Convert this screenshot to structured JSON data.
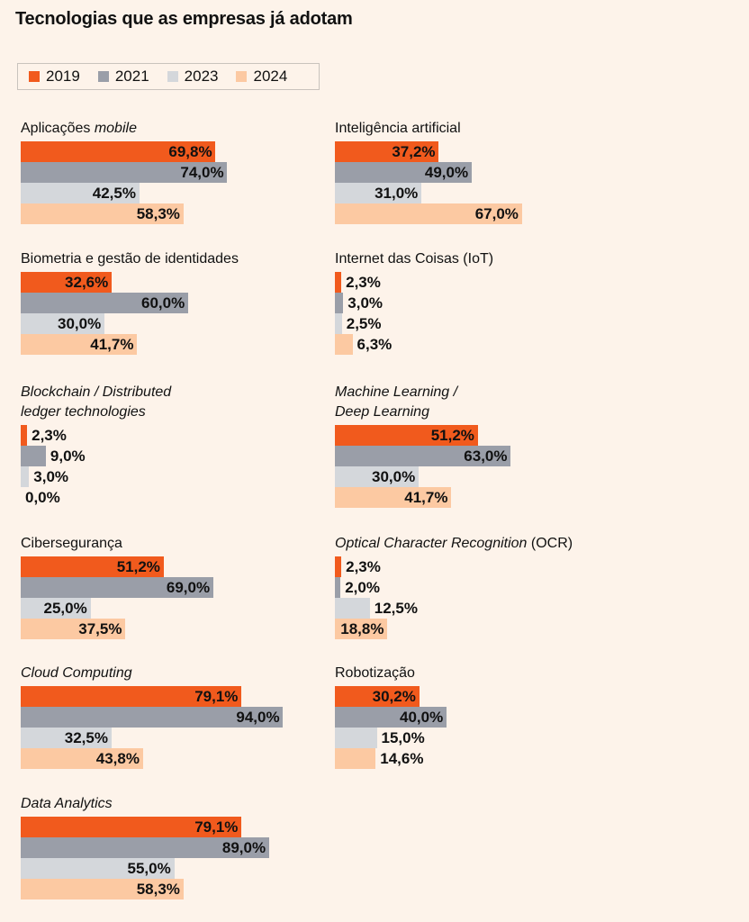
{
  "chart_data": {
    "type": "bar",
    "orientation": "horizontal",
    "title": "Tecnologias que as empresas já adotam",
    "xlim": [
      0,
      100
    ],
    "legend_placement": "top-left",
    "series": [
      {
        "name": "2019",
        "color": "#f15a1d"
      },
      {
        "name": "2021",
        "color": "#9a9ea8"
      },
      {
        "name": "2023",
        "color": "#d4d7db"
      },
      {
        "name": "2024",
        "color": "#fcc9a2"
      }
    ],
    "panels": [
      {
        "title": "Aplicações",
        "title_italic": "mobile",
        "values": [
          69.8,
          74.0,
          42.5,
          58.3
        ],
        "labels": [
          "69,8%",
          "74,0%",
          "42,5%",
          "58,3%"
        ]
      },
      {
        "title": "Inteligência artificial",
        "values": [
          37.2,
          49.0,
          31.0,
          67.0
        ],
        "labels": [
          "37,2%",
          "49,0%",
          "31,0%",
          "67,0%"
        ]
      },
      {
        "title": "Biometria e gestão de identidades",
        "values": [
          32.6,
          60.0,
          30.0,
          41.7
        ],
        "labels": [
          "32,6%",
          "60,0%",
          "30,0%",
          "41,7%"
        ]
      },
      {
        "title": "Internet das Coisas (IoT)",
        "values": [
          2.3,
          3.0,
          2.5,
          6.3
        ],
        "labels": [
          "2,3%",
          "3,0%",
          "2,5%",
          "6,3%"
        ]
      },
      {
        "title_italic_lines": [
          "Blockchain / Distributed",
          "ledger technologies"
        ],
        "values": [
          2.3,
          9.0,
          3.0,
          0.0
        ],
        "labels": [
          "2,3%",
          "9,0%",
          "3,0%",
          "0,0%"
        ]
      },
      {
        "title_italic_lines": [
          "Machine Learning /",
          "Deep Learning"
        ],
        "values": [
          51.2,
          63.0,
          30.0,
          41.7
        ],
        "labels": [
          "51,2%",
          "63,0%",
          "30,0%",
          "41,7%"
        ]
      },
      {
        "title": "Cibersegurança",
        "values": [
          51.2,
          69.0,
          25.0,
          37.5
        ],
        "labels": [
          "51,2%",
          "69,0%",
          "25,0%",
          "37,5%"
        ]
      },
      {
        "title_italic": "Optical Character Recognition",
        "title_suffix": " (OCR)",
        "values": [
          2.3,
          2.0,
          12.5,
          18.8
        ],
        "labels": [
          "2,3%",
          "2,0%",
          "12,5%",
          "18,8%"
        ]
      },
      {
        "title_italic": "Cloud Computing",
        "values": [
          79.1,
          94.0,
          32.5,
          43.8
        ],
        "labels": [
          "79,1%",
          "94,0%",
          "32,5%",
          "43,8%"
        ]
      },
      {
        "title": "Robotização",
        "values": [
          30.2,
          40.0,
          15.0,
          14.6
        ],
        "labels": [
          "30,2%",
          "40,0%",
          "15,0%",
          "14,6%"
        ]
      },
      {
        "title_italic": "Data Analytics",
        "values": [
          79.1,
          89.0,
          55.0,
          58.3
        ],
        "labels": [
          "79,1%",
          "89,0%",
          "55,0%",
          "58,3%"
        ]
      }
    ]
  }
}
